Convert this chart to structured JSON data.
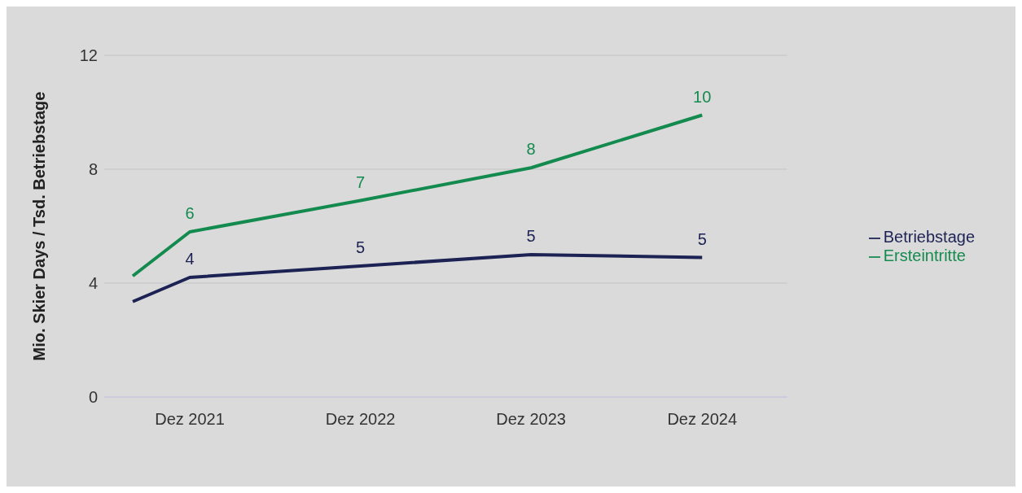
{
  "chart_data": {
    "type": "line",
    "ylabel": "Mio. Skier Days / Tsd. Betriebstage",
    "x": [
      "2021-08",
      "2021-12",
      "2022-12",
      "2023-12",
      "2024-12"
    ],
    "xlim": [
      "2021-06",
      "2025-06"
    ],
    "xticks": [
      {
        "value": "2021-12",
        "label": "Dez 2021"
      },
      {
        "value": "2022-12",
        "label": "Dez 2022"
      },
      {
        "value": "2023-12",
        "label": "Dez 2023"
      },
      {
        "value": "2024-12",
        "label": "Dez 2024"
      }
    ],
    "ylim": [
      0,
      12
    ],
    "yticks": [
      0,
      4,
      8,
      12
    ],
    "grid": "y",
    "legend": "right",
    "marker": "none",
    "line_style": "solid",
    "series": [
      {
        "name": "Betriebstage",
        "color": "#1c2253",
        "values": [
          3.35,
          4.2,
          4.6,
          5.0,
          4.9
        ],
        "value_labels": [
          null,
          "4",
          "5",
          "5",
          "5"
        ]
      },
      {
        "name": "Ersteintritte",
        "color": "#138a4e",
        "values": [
          4.25,
          5.8,
          6.9,
          8.05,
          9.9
        ],
        "value_labels": [
          null,
          "6",
          "7",
          "8",
          "10"
        ]
      }
    ]
  }
}
